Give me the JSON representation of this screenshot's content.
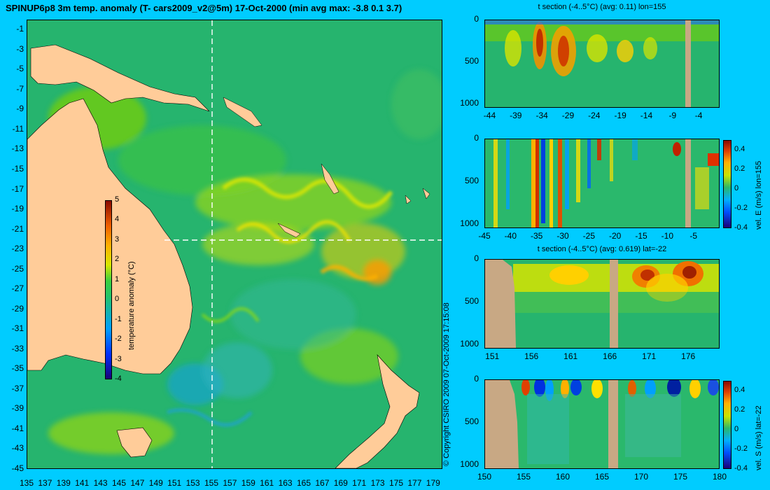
{
  "header": {
    "title": "SPINUP6p8 3m temp. anomaly (T- cars2009_v2@5m) 17-Oct-2000 (min avg max: -3.8 0.1 3.7)"
  },
  "map": {
    "y_ticks": [
      "-1",
      "-3",
      "-5",
      "-7",
      "-9",
      "-11",
      "-13",
      "-15",
      "-17",
      "-19",
      "-21",
      "-23",
      "-25",
      "-27",
      "-29",
      "-31",
      "-33",
      "-35",
      "-37",
      "-39",
      "-41",
      "-43",
      "-45"
    ],
    "x_ticks": [
      "135",
      "137",
      "139",
      "141",
      "143",
      "145",
      "147",
      "149",
      "151",
      "153",
      "155",
      "157",
      "159",
      "161",
      "163",
      "165",
      "167",
      "169",
      "171",
      "173",
      "175",
      "177",
      "179"
    ],
    "colorbar_label": "temperature anomaly (°C)",
    "colorbar_ticks": [
      "5",
      "4",
      "3",
      "2",
      "1",
      "0",
      "-1",
      "-2",
      "-3",
      "-4"
    ],
    "colors": {
      "land": "#ffcc99",
      "ocean": "#28b870",
      "section_line": "#ffffff"
    }
  },
  "copyright": "© Copyright CSIRO 2009   07-Oct-2009 17:15:08",
  "panels": [
    {
      "title": "t section (-4..5°C) (avg: 0.11) lon=155",
      "y_ticks": [
        "0",
        "500",
        "1000"
      ],
      "x_ticks": [
        "-44",
        "-39",
        "-34",
        "-29",
        "-24",
        "-19",
        "-14",
        "-9",
        "-4"
      ],
      "side_label": "",
      "cb_ticks": []
    },
    {
      "title": "",
      "y_ticks": [
        "0",
        "500",
        "1000"
      ],
      "x_ticks": [
        "-45",
        "-40",
        "-35",
        "-30",
        "-25",
        "-20",
        "-15",
        "-10",
        "-5"
      ],
      "side_label": "vel. E (m/s) lon=155",
      "cb_ticks": [
        "0.4",
        "0.2",
        "0",
        "-0.2",
        "-0.4"
      ]
    },
    {
      "title": "t section (-4..5°C) (avg: 0.619) lat=-22",
      "y_ticks": [
        "0",
        "500",
        "1000"
      ],
      "x_ticks": [
        "151",
        "156",
        "161",
        "166",
        "171",
        "176"
      ],
      "side_label": "",
      "cb_ticks": []
    },
    {
      "title": "",
      "y_ticks": [
        "0",
        "500",
        "1000"
      ],
      "x_ticks": [
        "150",
        "155",
        "160",
        "165",
        "170",
        "175",
        "180"
      ],
      "side_label": "vel. S (m/s) lat=-22",
      "cb_ticks": [
        "0.4",
        "0.2",
        "0",
        "-0.2",
        "-0.4"
      ]
    }
  ],
  "chart_data": [
    {
      "type": "heatmap",
      "title": "SPINUP6p8 3m temp. anomaly (T- cars2009_v2@5m) 17-Oct-2000 (min avg max: -3.8 0.1 3.7)",
      "xlabel": "",
      "ylabel": "",
      "xlim": [
        135,
        180
      ],
      "ylim": [
        -45,
        0
      ],
      "colorbar": {
        "label": "temperature anomaly (°C)",
        "range": [
          -4,
          5
        ]
      },
      "stats": {
        "min": -3.8,
        "avg": 0.1,
        "max": 3.7
      },
      "section_lines": {
        "lon": 155,
        "lat": -22
      }
    },
    {
      "type": "heatmap",
      "title": "t section (-4..5°C) (avg: 0.11) lon=155",
      "xlim": [
        -45,
        0
      ],
      "ylim": [
        1050,
        0
      ],
      "avg": 0.11
    },
    {
      "type": "heatmap",
      "title": "",
      "xlim": [
        -45,
        0
      ],
      "ylim": [
        1050,
        0
      ],
      "colorbar": {
        "label": "vel. E (m/s) lon=155",
        "range": [
          -0.4,
          0.5
        ]
      }
    },
    {
      "type": "heatmap",
      "title": "t section (-4..5°C) (avg: 0.619) lat=-22",
      "xlim": [
        150,
        180
      ],
      "ylim": [
        1050,
        0
      ],
      "avg": 0.619
    },
    {
      "type": "heatmap",
      "title": "",
      "xlim": [
        150,
        180
      ],
      "ylim": [
        1050,
        0
      ],
      "colorbar": {
        "label": "vel. S (m/s) lat=-22",
        "range": [
          -0.4,
          0.5
        ]
      }
    }
  ]
}
